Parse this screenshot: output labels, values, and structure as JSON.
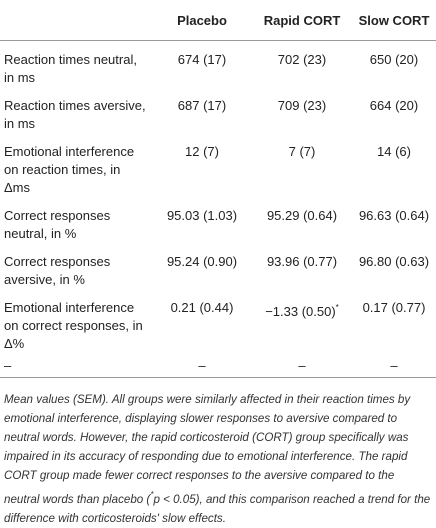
{
  "table": {
    "header": [
      "Placebo",
      "Rapid CORT",
      "Slow CORT"
    ],
    "rows": [
      {
        "label": "Reaction times neutral, in ms",
        "cells": [
          "674 (17)",
          "702 (23)",
          "650 (20)"
        ]
      },
      {
        "label": "Reaction times aversive, in ms",
        "cells": [
          "687 (17)",
          "709 (23)",
          "664 (20)"
        ]
      },
      {
        "label": "Emotional interference on reaction times, in Δms",
        "cells": [
          "12 (7)",
          "7 (7)",
          "14 (6)"
        ]
      },
      {
        "label": "Correct responses neutral, in %",
        "cells": [
          "95.03 (1.03)",
          "95.29 (0.64)",
          "96.63 (0.64)"
        ]
      },
      {
        "label": "Correct responses aversive, in %",
        "cells": [
          "95.24 (0.90)",
          "93.96 (0.77)",
          "96.80 (0.63)"
        ]
      },
      {
        "label": "Emotional interference on correct responses, in Δ%",
        "cells": [
          "0.21 (0.44)",
          "−1.33 (0.50)",
          "0.17 (0.77)"
        ],
        "mark": "*"
      },
      {
        "label": "–",
        "cells": [
          "–",
          "–",
          "–"
        ]
      }
    ]
  },
  "note": {
    "before": "Mean values (SEM). All groups were similarly affected in their reaction times by emotional interference, displaying slower responses to aversive compared to neutral words. However, the rapid corticosteroid (CORT) group specifically was impaired in its accuracy of responding due to emotional interference. The rapid CORT group made fewer correct responses to the aversive compared to the neutral words than placebo (",
    "star": "*",
    "p": "p < 0.05",
    "after": "), and this comparison reached a trend for the difference with corticosteroids' slow effects."
  }
}
